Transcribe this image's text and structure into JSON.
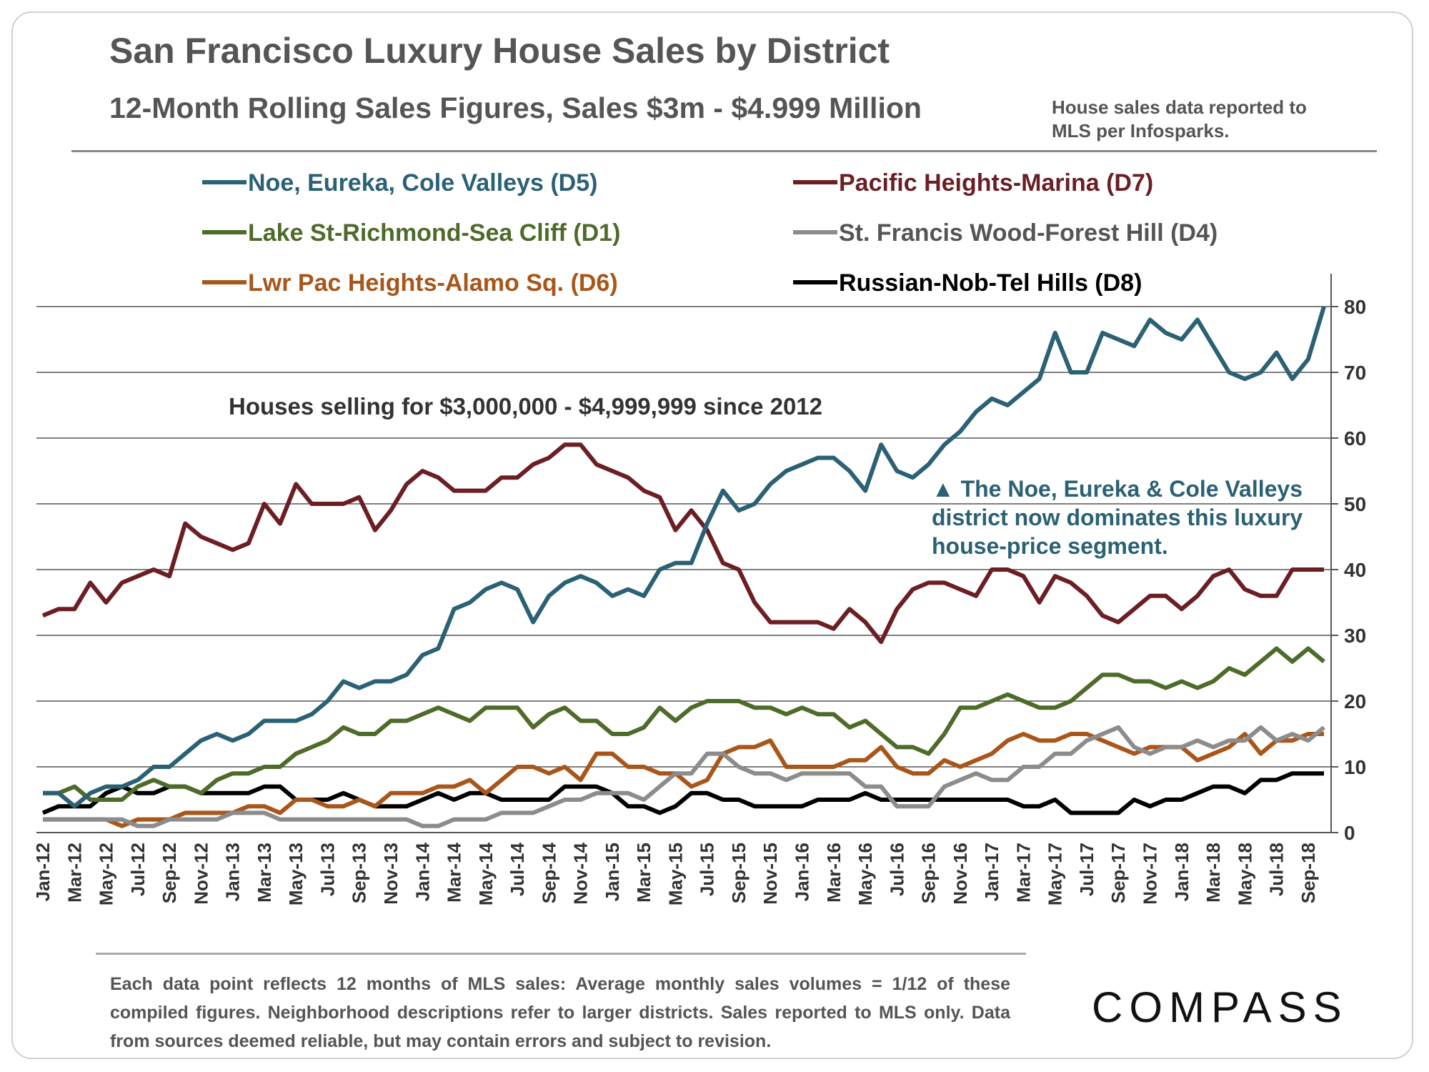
{
  "chart_data": {
    "type": "line",
    "title": "San Francisco Luxury House Sales by District",
    "subtitle": "12-Month Rolling Sales Figures, Sales $3m - $4.999 Million",
    "source_note": "House sales data reported to MLS per Infosparks.",
    "annotation": "Houses selling for $3,000,000 - $4,999,999 since 2012",
    "callout": "▲ The Noe, Eureka & Cole Valleys district now dominates this luxury house-price segment.",
    "footnote": "Each data point reflects 12 months of MLS sales: Average monthly sales volumes = 1/12 of these compiled figures. Neighborhood descriptions refer to larger districts. Sales reported to MLS only. Data from sources deemed reliable, but may contain errors and subject to revision.",
    "logo": "COMPASS",
    "categories": [
      "Jan-12",
      null,
      "Mar-12",
      null,
      "May-12",
      null,
      "Jul-12",
      null,
      "Sep-12",
      null,
      "Nov-12",
      null,
      "Jan-13",
      null,
      "Mar-13",
      null,
      "May-13",
      null,
      "Jul-13",
      null,
      "Sep-13",
      null,
      "Nov-13",
      null,
      "Jan-14",
      null,
      "Mar-14",
      null,
      "May-14",
      null,
      "Jul-14",
      null,
      "Sep-14",
      null,
      "Nov-14",
      null,
      "Jan-15",
      null,
      "Mar-15",
      null,
      "May-15",
      null,
      "Jul-15",
      null,
      "Sep-15",
      null,
      "Nov-15",
      null,
      "Jan-16",
      null,
      "Mar-16",
      null,
      "May-16",
      null,
      "Jul-16",
      null,
      "Sep-16",
      null,
      "Nov-16",
      null,
      "Jan-17",
      null,
      "Mar-17",
      null,
      "May-17",
      null,
      "Jul-17",
      null,
      "Sep-17",
      null,
      "Nov-17",
      null,
      "Jan-18",
      null,
      "Mar-18",
      null,
      "May-18",
      null,
      "Jul-18",
      null,
      "Sep-18",
      null
    ],
    "series": [
      {
        "name": "Noe, Eureka, Cole Valleys (D5)",
        "color": "#2b6175",
        "values": [
          6,
          6,
          4,
          6,
          7,
          7,
          8,
          10,
          10,
          12,
          14,
          15,
          14,
          15,
          17,
          17,
          17,
          18,
          20,
          23,
          22,
          23,
          23,
          24,
          27,
          28,
          34,
          35,
          37,
          38,
          37,
          32,
          36,
          38,
          39,
          38,
          36,
          37,
          36,
          40,
          41,
          41,
          47,
          52,
          49,
          50,
          53,
          55,
          56,
          57,
          57,
          55,
          52,
          59,
          55,
          54,
          56,
          59,
          61,
          64,
          66,
          65,
          67,
          69,
          76,
          70,
          70,
          76,
          75,
          74,
          78,
          76,
          75,
          78,
          74,
          70,
          69,
          70,
          73,
          69,
          72,
          80
        ]
      },
      {
        "name": "Pacific Heights-Marina (D7)",
        "color": "#6b1f24",
        "values": [
          33,
          34,
          34,
          38,
          35,
          38,
          39,
          40,
          39,
          47,
          45,
          44,
          43,
          44,
          50,
          47,
          53,
          50,
          50,
          50,
          51,
          46,
          49,
          53,
          55,
          54,
          52,
          52,
          52,
          54,
          54,
          56,
          57,
          59,
          59,
          56,
          55,
          54,
          52,
          51,
          46,
          49,
          46,
          41,
          40,
          35,
          32,
          32,
          32,
          32,
          31,
          34,
          32,
          29,
          34,
          37,
          38,
          38,
          37,
          36,
          40,
          40,
          39,
          35,
          39,
          38,
          36,
          33,
          32,
          34,
          36,
          36,
          34,
          36,
          39,
          40,
          37,
          36,
          36,
          40,
          40,
          40
        ]
      },
      {
        "name": "Lake St-Richmond-Sea Cliff (D1)",
        "color": "#4e6b2a",
        "values": [
          6,
          6,
          7,
          5,
          5,
          5,
          7,
          8,
          7,
          7,
          6,
          8,
          9,
          9,
          10,
          10,
          12,
          13,
          14,
          16,
          15,
          15,
          17,
          17,
          18,
          19,
          18,
          17,
          19,
          19,
          19,
          16,
          18,
          19,
          17,
          17,
          15,
          15,
          16,
          19,
          17,
          19,
          20,
          20,
          20,
          19,
          19,
          18,
          19,
          18,
          18,
          16,
          17,
          15,
          13,
          13,
          12,
          15,
          19,
          19,
          20,
          21,
          20,
          19,
          19,
          20,
          22,
          24,
          24,
          23,
          23,
          22,
          23,
          22,
          23,
          25,
          24,
          26,
          28,
          26,
          28,
          26
        ]
      },
      {
        "name": "St. Francis Wood-Forest Hill (D4)",
        "color": "#8c8c8c",
        "values": [
          2,
          2,
          2,
          2,
          2,
          2,
          1,
          1,
          2,
          2,
          2,
          2,
          3,
          3,
          3,
          2,
          2,
          2,
          2,
          2,
          2,
          2,
          2,
          2,
          1,
          1,
          2,
          2,
          2,
          3,
          3,
          3,
          4,
          5,
          5,
          6,
          6,
          6,
          5,
          7,
          9,
          9,
          12,
          12,
          10,
          9,
          9,
          8,
          9,
          9,
          9,
          9,
          7,
          7,
          4,
          4,
          4,
          7,
          8,
          9,
          8,
          8,
          10,
          10,
          12,
          12,
          14,
          15,
          16,
          13,
          12,
          13,
          13,
          14,
          13,
          14,
          14,
          16,
          14,
          15,
          14,
          16
        ]
      },
      {
        "name": "Lwr Pac Heights-Alamo Sq. (D6)",
        "color": "#a8561a",
        "values": [
          2,
          2,
          2,
          2,
          2,
          1,
          2,
          2,
          2,
          3,
          3,
          3,
          3,
          4,
          4,
          3,
          5,
          5,
          4,
          4,
          5,
          4,
          6,
          6,
          6,
          7,
          7,
          8,
          6,
          8,
          10,
          10,
          9,
          10,
          8,
          12,
          12,
          10,
          10,
          9,
          9,
          7,
          8,
          12,
          13,
          13,
          14,
          10,
          10,
          10,
          10,
          11,
          11,
          13,
          10,
          9,
          9,
          11,
          10,
          11,
          12,
          14,
          15,
          14,
          14,
          15,
          15,
          14,
          13,
          12,
          13,
          13,
          13,
          11,
          12,
          13,
          15,
          12,
          14,
          14,
          15,
          15
        ]
      },
      {
        "name": "Russian-Nob-Tel Hills (D8)",
        "color": "#000000",
        "values": [
          3,
          4,
          4,
          4,
          6,
          7,
          6,
          6,
          7,
          7,
          6,
          6,
          6,
          6,
          7,
          7,
          5,
          5,
          5,
          6,
          5,
          4,
          4,
          4,
          5,
          6,
          5,
          6,
          6,
          5,
          5,
          5,
          5,
          7,
          7,
          7,
          6,
          4,
          4,
          3,
          4,
          6,
          6,
          5,
          5,
          4,
          4,
          4,
          4,
          5,
          5,
          5,
          6,
          5,
          5,
          5,
          5,
          5,
          5,
          5,
          5,
          5,
          4,
          4,
          5,
          3,
          3,
          3,
          3,
          5,
          4,
          5,
          5,
          6,
          7,
          7,
          6,
          8,
          8,
          9,
          9,
          9
        ]
      }
    ],
    "ylim": [
      0,
      85
    ],
    "yticks": [
      0,
      10,
      20,
      30,
      40,
      50,
      60,
      70,
      80
    ],
    "grid": true
  }
}
